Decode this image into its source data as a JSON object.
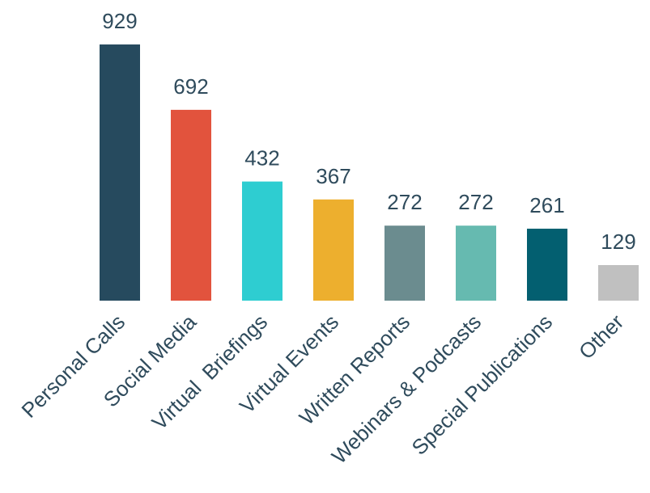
{
  "chart_data": {
    "type": "bar",
    "categories": [
      "Personal Calls",
      "Social Media",
      "Virtual  Briefings",
      "Virtual Events",
      "Written Reports",
      "Webinars & Podcasts",
      "Special Publications",
      "Other"
    ],
    "values": [
      929,
      692,
      432,
      367,
      272,
      272,
      261,
      129
    ],
    "colors": [
      "#264a5e",
      "#e2533d",
      "#2ecdd1",
      "#edaf2e",
      "#6b8c8f",
      "#66bab0",
      "#035f70",
      "#c0c0c0"
    ]
  }
}
